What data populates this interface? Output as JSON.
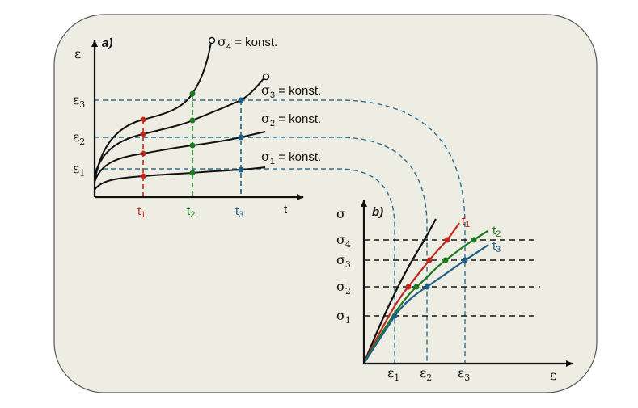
{
  "panel_a": {
    "label": "a)",
    "y_axis": "ε",
    "x_axis": "t",
    "y_ticks": [
      {
        "main": "ε",
        "sub": "3"
      },
      {
        "main": "ε",
        "sub": "2"
      },
      {
        "main": "ε",
        "sub": "1"
      }
    ],
    "x_ticks": [
      {
        "main": "t",
        "sub": "1",
        "color": "#c0281e"
      },
      {
        "main": "t",
        "sub": "2",
        "color": "#1e7a1e"
      },
      {
        "main": "t",
        "sub": "3",
        "color": "#1f5f86"
      }
    ],
    "curves": [
      {
        "sym": "σ",
        "sub": "4",
        "text": " = konst."
      },
      {
        "sym": "σ",
        "sub": "3",
        "text": " = konst."
      },
      {
        "sym": "σ",
        "sub": "2",
        "text": " = konst."
      },
      {
        "sym": "σ",
        "sub": "1",
        "text": " = konst."
      }
    ]
  },
  "panel_b": {
    "label": "b)",
    "y_axis": "σ",
    "x_axis": "ε",
    "y_ticks": [
      {
        "main": "σ",
        "sub": "4"
      },
      {
        "main": "σ",
        "sub": "3"
      },
      {
        "main": "σ",
        "sub": "2"
      },
      {
        "main": "σ",
        "sub": "1"
      }
    ],
    "x_ticks": [
      {
        "main": "ε",
        "sub": "1"
      },
      {
        "main": "ε",
        "sub": "2"
      },
      {
        "main": "ε",
        "sub": "3"
      }
    ],
    "curves": [
      {
        "main": "t",
        "sub": "1",
        "color": "#c0281e"
      },
      {
        "main": "t",
        "sub": "2",
        "color": "#1e7a1e"
      },
      {
        "main": "t",
        "sub": "3",
        "color": "#1f5f86"
      }
    ]
  },
  "colors": {
    "background": "#eeede3",
    "red": "#c0281e",
    "green": "#1e7a1e",
    "blue": "#1f5f86",
    "dashed_blue": "#2f6e90",
    "black": "#111111"
  }
}
